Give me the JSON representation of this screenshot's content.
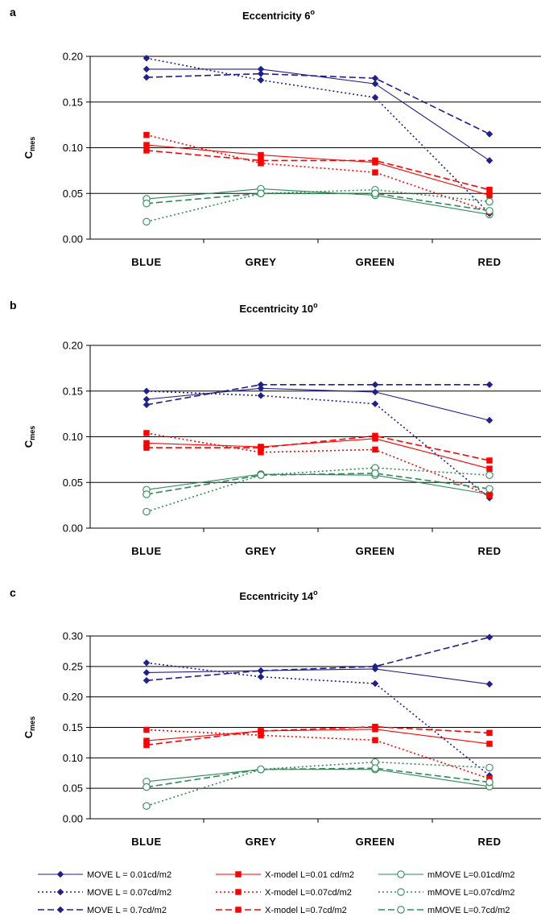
{
  "chart_data": [
    {
      "panel": "a",
      "type": "line",
      "title": "Eccentricity 6",
      "title_sup": "o",
      "ylabel": "C",
      "ylabel_sub": "mes",
      "categories": [
        "BLUE",
        "GREY",
        "GREEN",
        "RED"
      ],
      "ylim": [
        0,
        0.2
      ],
      "yticks": [
        "0.00",
        "0.05",
        "0.10",
        "0.15",
        "0.20"
      ],
      "ytick_values": [
        0,
        0.05,
        0.1,
        0.15,
        0.2
      ],
      "grid": true,
      "series": [
        {
          "values": [
            0.186,
            0.186,
            0.17,
            0.086
          ]
        },
        {
          "values": [
            0.103,
            0.092,
            0.084,
            0.048
          ]
        },
        {
          "values": [
            0.044,
            0.055,
            0.048,
            0.027
          ]
        },
        {
          "values": [
            0.198,
            0.174,
            0.155,
            0.028
          ]
        },
        {
          "values": [
            0.114,
            0.083,
            0.073,
            0.03
          ]
        },
        {
          "values": [
            0.019,
            0.05,
            0.054,
            0.041
          ]
        },
        {
          "values": [
            0.177,
            0.181,
            0.176,
            0.115
          ]
        },
        {
          "values": [
            0.097,
            0.086,
            0.086,
            0.054
          ]
        },
        {
          "values": [
            0.039,
            0.05,
            0.05,
            0.031
          ]
        }
      ]
    },
    {
      "panel": "b",
      "type": "line",
      "title": "Eccentricity 10",
      "title_sup": "o",
      "ylabel": "C",
      "ylabel_sub": "mes",
      "categories": [
        "BLUE",
        "GREY",
        "GREEN",
        "RED"
      ],
      "ylim": [
        0,
        0.2
      ],
      "yticks": [
        "0.00",
        "0.05",
        "0.10",
        "0.15",
        "0.20"
      ],
      "ytick_values": [
        0,
        0.05,
        0.1,
        0.15,
        0.2
      ],
      "grid": true,
      "series": [
        {
          "values": [
            0.141,
            0.153,
            0.149,
            0.118
          ]
        },
        {
          "values": [
            0.093,
            0.089,
            0.098,
            0.065
          ]
        },
        {
          "values": [
            0.042,
            0.059,
            0.058,
            0.037
          ]
        },
        {
          "values": [
            0.15,
            0.145,
            0.136,
            0.033
          ]
        },
        {
          "values": [
            0.104,
            0.083,
            0.086,
            0.036
          ]
        },
        {
          "values": [
            0.018,
            0.058,
            0.066,
            0.058
          ]
        },
        {
          "values": [
            0.135,
            0.157,
            0.157,
            0.157
          ]
        },
        {
          "values": [
            0.088,
            0.088,
            0.101,
            0.074
          ]
        },
        {
          "values": [
            0.037,
            0.058,
            0.06,
            0.043
          ]
        }
      ]
    },
    {
      "panel": "c",
      "type": "line",
      "title": "Eccentricity 14",
      "title_sup": "o",
      "ylabel": "C",
      "ylabel_sub": "mes",
      "categories": [
        "BLUE",
        "GREY",
        "GREEN",
        "RED"
      ],
      "ylim": [
        0,
        0.3
      ],
      "yticks": [
        "0.00",
        "0.05",
        "0.10",
        "0.15",
        "0.20",
        "0.25",
        "0.30"
      ],
      "ytick_values": [
        0,
        0.05,
        0.1,
        0.15,
        0.2,
        0.25,
        0.3
      ],
      "grid": true,
      "series": [
        {
          "values": [
            0.24,
            0.243,
            0.246,
            0.221
          ]
        },
        {
          "values": [
            0.128,
            0.144,
            0.147,
            0.123
          ]
        },
        {
          "values": [
            0.061,
            0.081,
            0.081,
            0.053
          ]
        },
        {
          "values": [
            0.256,
            0.233,
            0.222,
            0.071
          ]
        },
        {
          "values": [
            0.146,
            0.137,
            0.129,
            0.066
          ]
        },
        {
          "values": [
            0.021,
            0.081,
            0.093,
            0.084
          ]
        },
        {
          "values": [
            0.227,
            0.243,
            0.25,
            0.298
          ]
        },
        {
          "values": [
            0.121,
            0.144,
            0.151,
            0.141
          ]
        },
        {
          "values": [
            0.052,
            0.081,
            0.083,
            0.06
          ]
        }
      ]
    }
  ],
  "legend": {
    "placement": "bottom",
    "entries": [
      {
        "label": "MOVE L = 0.01cd/m2",
        "color": "#1f1f8f",
        "dash": "solid",
        "marker": "diamond-filled"
      },
      {
        "label": "X-model L=0.01 cd/m2",
        "color": "#ff0000",
        "dash": "solid",
        "marker": "square-filled"
      },
      {
        "label": "mMOVE L=0.01cd/m2",
        "color": "#2e8b57",
        "dash": "solid",
        "marker": "circle-open"
      },
      {
        "label": "MOVE L = 0.07cd/m2",
        "color": "#1f1f8f",
        "dash": "dotted",
        "marker": "diamond-filled"
      },
      {
        "label": "X-model L=0.07cd/m2",
        "color": "#ff0000",
        "dash": "dotted",
        "marker": "square-filled"
      },
      {
        "label": "mMOVE L=0.07cd/m2",
        "color": "#2e8b57",
        "dash": "dotted",
        "marker": "circle-open"
      },
      {
        "label": "MOVE L = 0.7cd/m2",
        "color": "#1f1f8f",
        "dash": "dashed",
        "marker": "diamond-filled"
      },
      {
        "label": "X-model L=0.7cd/m2",
        "color": "#ff0000",
        "dash": "dashed",
        "marker": "square-filled"
      },
      {
        "label": "mMOVE L=0.7cd/m2",
        "color": "#2e8b57",
        "dash": "dashed",
        "marker": "circle-open"
      }
    ]
  }
}
